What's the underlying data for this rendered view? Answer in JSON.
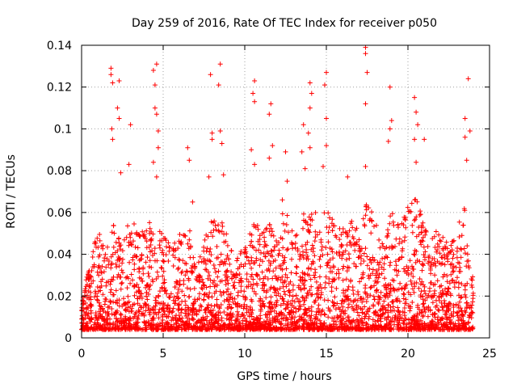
{
  "chart_data": {
    "type": "scatter",
    "title": "Day 259 of 2016, Rate Of TEC Index for receiver p050",
    "xlabel": "GPS time / hours",
    "ylabel": "ROTI / TECUs",
    "xlim": [
      0,
      25
    ],
    "ylim": [
      0,
      0.14
    ],
    "xticks": [
      0,
      5,
      10,
      15,
      20,
      25
    ],
    "yticks": [
      0,
      0.02,
      0.04,
      0.06,
      0.08,
      0.1,
      0.12,
      0.14
    ],
    "xtick_labels": [
      "0",
      "5",
      "10",
      "15",
      "20",
      "25"
    ],
    "ytick_labels": [
      "0",
      "0.02",
      "0.04",
      "0.06",
      "0.08",
      "0.1",
      "0.12",
      "0.14"
    ],
    "grid": true,
    "marker": "+",
    "color": "#ff0000",
    "data_range_x": [
      0,
      24
    ],
    "series": [
      {
        "name": "ROTI",
        "points": [
          [
            1.8,
            0.129
          ],
          [
            1.8,
            0.126
          ],
          [
            1.9,
            0.122
          ],
          [
            1.85,
            0.1
          ],
          [
            1.9,
            0.095
          ],
          [
            2.3,
            0.123
          ],
          [
            2.2,
            0.11
          ],
          [
            2.3,
            0.105
          ],
          [
            2.4,
            0.079
          ],
          [
            3.0,
            0.102
          ],
          [
            2.9,
            0.083
          ],
          [
            4.4,
            0.128
          ],
          [
            4.5,
            0.121
          ],
          [
            4.6,
            0.131
          ],
          [
            4.5,
            0.11
          ],
          [
            4.6,
            0.107
          ],
          [
            4.4,
            0.084
          ],
          [
            4.7,
            0.099
          ],
          [
            4.7,
            0.091
          ],
          [
            4.6,
            0.077
          ],
          [
            6.5,
            0.091
          ],
          [
            6.6,
            0.085
          ],
          [
            6.8,
            0.065
          ],
          [
            7.9,
            0.126
          ],
          [
            8.0,
            0.098
          ],
          [
            8.0,
            0.095
          ],
          [
            7.8,
            0.077
          ],
          [
            8.5,
            0.131
          ],
          [
            8.4,
            0.121
          ],
          [
            8.5,
            0.099
          ],
          [
            8.6,
            0.093
          ],
          [
            8.7,
            0.078
          ],
          [
            10.6,
            0.123
          ],
          [
            10.5,
            0.117
          ],
          [
            10.6,
            0.113
          ],
          [
            10.4,
            0.09
          ],
          [
            10.6,
            0.083
          ],
          [
            11.6,
            0.112
          ],
          [
            11.5,
            0.107
          ],
          [
            11.7,
            0.092
          ],
          [
            11.5,
            0.086
          ],
          [
            12.5,
            0.089
          ],
          [
            12.6,
            0.075
          ],
          [
            12.3,
            0.066
          ],
          [
            13.6,
            0.102
          ],
          [
            13.5,
            0.089
          ],
          [
            13.7,
            0.081
          ],
          [
            14.0,
            0.122
          ],
          [
            14.1,
            0.117
          ],
          [
            14.0,
            0.11
          ],
          [
            13.9,
            0.098
          ],
          [
            14.0,
            0.091
          ],
          [
            15.0,
            0.127
          ],
          [
            14.9,
            0.121
          ],
          [
            15.0,
            0.105
          ],
          [
            15.0,
            0.092
          ],
          [
            14.8,
            0.082
          ],
          [
            16.3,
            0.077
          ],
          [
            17.4,
            0.139
          ],
          [
            17.4,
            0.136
          ],
          [
            17.5,
            0.127
          ],
          [
            17.4,
            0.112
          ],
          [
            17.4,
            0.082
          ],
          [
            18.9,
            0.12
          ],
          [
            19.0,
            0.104
          ],
          [
            18.9,
            0.1
          ],
          [
            18.8,
            0.094
          ],
          [
            20.4,
            0.115
          ],
          [
            20.5,
            0.108
          ],
          [
            20.6,
            0.102
          ],
          [
            20.4,
            0.095
          ],
          [
            20.5,
            0.084
          ],
          [
            21.0,
            0.095
          ],
          [
            23.5,
            0.105
          ],
          [
            23.7,
            0.124
          ],
          [
            23.8,
            0.099
          ],
          [
            23.5,
            0.096
          ],
          [
            23.6,
            0.085
          ]
        ],
        "dense_profile": [
          [
            0.0,
            0.01
          ],
          [
            0.5,
            0.03
          ],
          [
            1.0,
            0.04
          ],
          [
            1.5,
            0.035
          ],
          [
            2.0,
            0.045
          ],
          [
            2.5,
            0.04
          ],
          [
            3.0,
            0.045
          ],
          [
            3.5,
            0.04
          ],
          [
            4.0,
            0.045
          ],
          [
            4.5,
            0.05
          ],
          [
            5.0,
            0.04
          ],
          [
            5.5,
            0.035
          ],
          [
            6.0,
            0.04
          ],
          [
            6.5,
            0.045
          ],
          [
            7.0,
            0.025
          ],
          [
            7.5,
            0.04
          ],
          [
            8.0,
            0.045
          ],
          [
            8.5,
            0.05
          ],
          [
            9.0,
            0.035
          ],
          [
            9.5,
            0.03
          ],
          [
            10.0,
            0.035
          ],
          [
            10.5,
            0.05
          ],
          [
            11.0,
            0.04
          ],
          [
            11.5,
            0.045
          ],
          [
            12.0,
            0.04
          ],
          [
            12.5,
            0.05
          ],
          [
            13.0,
            0.04
          ],
          [
            13.5,
            0.045
          ],
          [
            14.0,
            0.05
          ],
          [
            14.5,
            0.045
          ],
          [
            15.0,
            0.05
          ],
          [
            15.5,
            0.045
          ],
          [
            16.0,
            0.04
          ],
          [
            16.5,
            0.045
          ],
          [
            17.0,
            0.04
          ],
          [
            17.5,
            0.055
          ],
          [
            18.0,
            0.045
          ],
          [
            18.5,
            0.04
          ],
          [
            19.0,
            0.05
          ],
          [
            19.5,
            0.045
          ],
          [
            20.0,
            0.05
          ],
          [
            20.5,
            0.055
          ],
          [
            21.0,
            0.045
          ],
          [
            21.5,
            0.04
          ],
          [
            22.0,
            0.04
          ],
          [
            22.5,
            0.035
          ],
          [
            23.0,
            0.04
          ],
          [
            23.5,
            0.05
          ],
          [
            24.0,
            0.02
          ]
        ]
      }
    ]
  }
}
